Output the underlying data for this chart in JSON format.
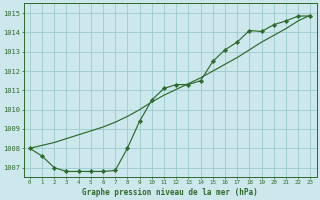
{
  "title": "Graphe pression niveau de la mer (hPa)",
  "bg_color": "#cce8ec",
  "grid_color": "#99cccc",
  "line_color": "#2d6a2d",
  "marker_color": "#2d6a2d",
  "line1_y": [
    1008.0,
    1007.6,
    1007.0,
    1006.8,
    1006.8,
    1006.8,
    1006.8,
    1006.85,
    1008.0,
    1009.4,
    1010.5,
    1011.1,
    1011.3,
    1011.3,
    1011.5,
    1012.5,
    1013.1,
    1013.5,
    1014.1,
    1014.05,
    1014.4,
    1014.6,
    1014.85,
    1014.85
  ],
  "line2_y": [
    1008.0,
    1008.15,
    1008.3,
    1008.5,
    1008.7,
    1008.9,
    1009.1,
    1009.35,
    1009.65,
    1010.0,
    1010.4,
    1010.75,
    1011.05,
    1011.35,
    1011.65,
    1012.0,
    1012.35,
    1012.7,
    1013.1,
    1013.5,
    1013.85,
    1014.2,
    1014.6,
    1014.9
  ],
  "x": [
    0,
    1,
    2,
    3,
    4,
    5,
    6,
    7,
    8,
    9,
    10,
    11,
    12,
    13,
    14,
    15,
    16,
    17,
    18,
    19,
    20,
    21,
    22,
    23
  ],
  "xlim": [
    -0.5,
    23.5
  ],
  "ylim": [
    1006.5,
    1015.5
  ],
  "yticks": [
    1007,
    1008,
    1009,
    1010,
    1011,
    1012,
    1013,
    1014,
    1015
  ],
  "xticks": [
    0,
    1,
    2,
    3,
    4,
    5,
    6,
    7,
    8,
    9,
    10,
    11,
    12,
    13,
    14,
    15,
    16,
    17,
    18,
    19,
    20,
    21,
    22,
    23
  ],
  "xlabel_fontsize": 5.5,
  "ytick_fontsize": 5.0,
  "xtick_fontsize": 4.2
}
